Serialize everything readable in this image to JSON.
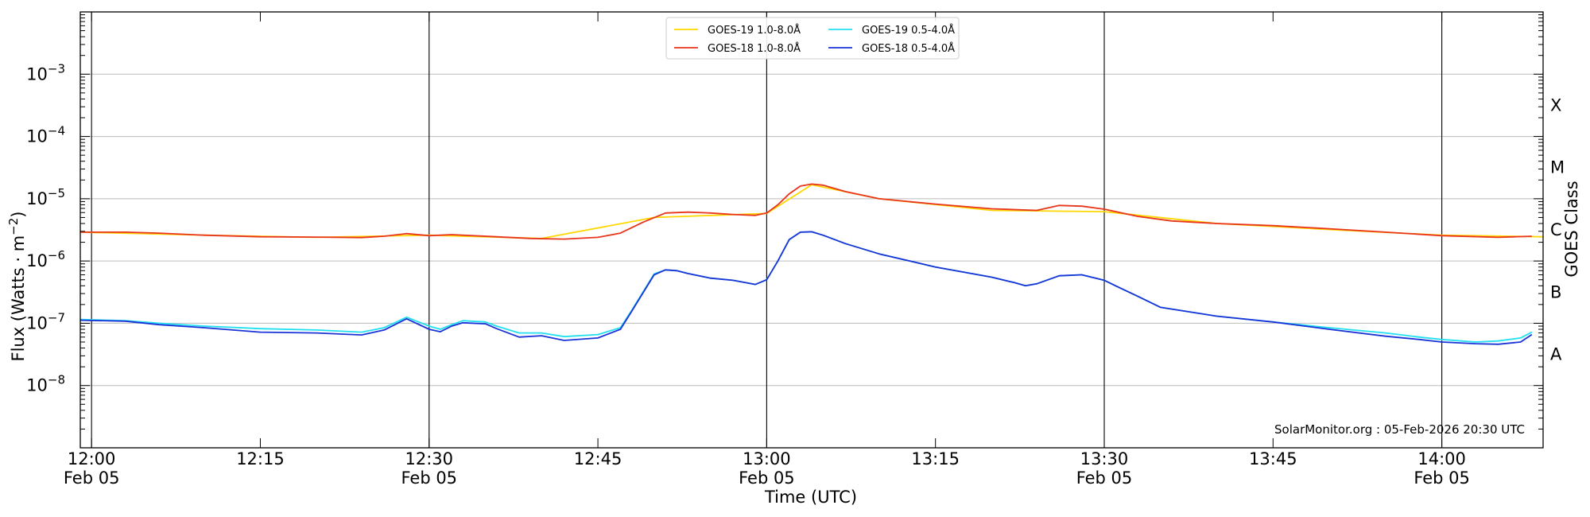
{
  "chart_data": {
    "type": "line",
    "title": "",
    "xlabel": "Time (UTC)",
    "ylabel": "Flux (Watts · m⁻²)",
    "right_label": "GOES Class",
    "credit": "SolarMonitor.org : 05-Feb-2026 20:30 UTC",
    "y_scale": "log",
    "ylim": [
      1e-09,
      0.01
    ],
    "xlim_minutes": [
      -1,
      129
    ],
    "grid": "horizontal at decades",
    "legend_position": "top-center",
    "y_ticks": [
      {
        "value": 1e-08,
        "base": "10",
        "exp": "−8"
      },
      {
        "value": 1e-07,
        "base": "10",
        "exp": "−7"
      },
      {
        "value": 1e-06,
        "base": "10",
        "exp": "−6"
      },
      {
        "value": 1e-05,
        "base": "10",
        "exp": "−5"
      },
      {
        "value": 0.0001,
        "base": "10",
        "exp": "−4"
      },
      {
        "value": 0.001,
        "base": "10",
        "exp": "−3"
      }
    ],
    "x_ticks": [
      {
        "minute": 0,
        "label": "12:00",
        "date": "Feb 05"
      },
      {
        "minute": 15,
        "label": "12:15",
        "date": ""
      },
      {
        "minute": 30,
        "label": "12:30",
        "date": "Feb 05"
      },
      {
        "minute": 45,
        "label": "12:45",
        "date": ""
      },
      {
        "minute": 60,
        "label": "13:00",
        "date": "Feb 05"
      },
      {
        "minute": 75,
        "label": "13:15",
        "date": ""
      },
      {
        "minute": 90,
        "label": "13:30",
        "date": "Feb 05"
      },
      {
        "minute": 105,
        "label": "13:45",
        "date": ""
      },
      {
        "minute": 120,
        "label": "14:00",
        "date": "Feb 05"
      }
    ],
    "vlines_minutes": [
      0,
      30,
      60,
      90,
      120
    ],
    "goes_classes": [
      {
        "label": "A",
        "value": 3.16e-08
      },
      {
        "label": "B",
        "value": 3.16e-07
      },
      {
        "label": "C",
        "value": 3.16e-06
      },
      {
        "label": "M",
        "value": 3.16e-05
      },
      {
        "label": "X",
        "value": 0.000316
      }
    ],
    "series": [
      {
        "name": "GOES-19 1.0-8.0Å",
        "color": "#ffd700",
        "x": [
          -1,
          10,
          20,
          30,
          40,
          50,
          60,
          64,
          70,
          80,
          90,
          100,
          110,
          120,
          130
        ],
        "y": [
          2.9e-06,
          2.6e-06,
          2.4e-06,
          2.6e-06,
          2.3e-06,
          5e-06,
          5.8e-06,
          1.68e-05,
          1e-05,
          6.5e-06,
          6.2e-06,
          4e-06,
          3.2e-06,
          2.6e-06,
          2.45e-06
        ]
      },
      {
        "name": "GOES-18 1.0-8.0Å",
        "color": "#e8351c",
        "x": [
          -1,
          3,
          6,
          10,
          15,
          20,
          24,
          26,
          28,
          30,
          32,
          36,
          39,
          42,
          45,
          47,
          49,
          51,
          53,
          55,
          57,
          59,
          60,
          61,
          62,
          63,
          64,
          65,
          67,
          70,
          75,
          80,
          84,
          86,
          88,
          90,
          93,
          96,
          100,
          105,
          110,
          115,
          120,
          125,
          128
        ],
        "y": [
          2.9e-06,
          2.9e-06,
          2.8e-06,
          2.6e-06,
          2.45e-06,
          2.42e-06,
          2.38e-06,
          2.5e-06,
          2.75e-06,
          2.55e-06,
          2.65e-06,
          2.45e-06,
          2.3e-06,
          2.25e-06,
          2.4e-06,
          2.8e-06,
          4.2e-06,
          5.9e-06,
          6.1e-06,
          5.9e-06,
          5.6e-06,
          5.4e-06,
          5.9e-06,
          8e-06,
          1.2e-05,
          1.6e-05,
          1.72e-05,
          1.65e-05,
          1.3e-05,
          1e-05,
          8.2e-06,
          6.9e-06,
          6.5e-06,
          7.8e-06,
          7.6e-06,
          6.8e-06,
          5.2e-06,
          4.4e-06,
          4e-06,
          3.7e-06,
          3.3e-06,
          2.9e-06,
          2.55e-06,
          2.4e-06,
          2.5e-06
        ]
      },
      {
        "name": "GOES-19 0.5-4.0Å",
        "color": "#22e0f0",
        "x": [
          -1,
          3,
          6,
          10,
          15,
          20,
          24,
          26,
          28,
          30,
          31,
          32,
          33,
          35,
          36,
          38,
          40,
          42,
          45,
          47,
          48,
          50,
          51,
          52,
          53,
          55,
          57,
          59,
          60,
          61,
          62,
          63,
          64,
          65,
          67,
          70,
          75,
          80,
          82,
          83,
          84,
          86,
          88,
          90,
          91,
          93,
          95,
          100,
          105,
          110,
          115,
          118,
          120,
          123,
          125,
          127,
          128
        ],
        "y": [
          1.15e-07,
          1.1e-07,
          1e-07,
          9e-08,
          8.2e-08,
          7.8e-08,
          7.2e-08,
          8.5e-08,
          1.25e-07,
          9e-08,
          8e-08,
          9.5e-08,
          1.1e-07,
          1.05e-07,
          9e-08,
          7e-08,
          7e-08,
          6.1e-08,
          6.6e-08,
          8.5e-08,
          1.6e-07,
          6.2e-07,
          7.2e-07,
          7e-07,
          6.3e-07,
          5.3e-07,
          4.9e-07,
          4.2e-07,
          5e-07,
          1e-06,
          2.2e-06,
          2.9e-06,
          2.95e-06,
          2.6e-06,
          1.9e-06,
          1.3e-06,
          8e-07,
          5.5e-07,
          4.5e-07,
          4e-07,
          4.3e-07,
          5.8e-07,
          6e-07,
          4.9e-07,
          4e-07,
          2.7e-07,
          1.8e-07,
          1.3e-07,
          1.05e-07,
          8.5e-08,
          7e-08,
          6e-08,
          5.5e-08,
          5e-08,
          5.2e-08,
          5.8e-08,
          7.2e-08
        ]
      },
      {
        "name": "GOES-18 0.5-4.0Å",
        "color": "#1b33d6",
        "x": [
          -1,
          3,
          6,
          10,
          15,
          20,
          24,
          26,
          28,
          30,
          31,
          32,
          33,
          35,
          36,
          38,
          40,
          42,
          45,
          47,
          48,
          50,
          51,
          52,
          53,
          55,
          57,
          59,
          60,
          61,
          62,
          63,
          64,
          65,
          67,
          70,
          75,
          80,
          82,
          83,
          84,
          86,
          88,
          90,
          91,
          93,
          95,
          100,
          105,
          110,
          115,
          118,
          120,
          123,
          125,
          127,
          128
        ],
        "y": [
          1.12e-07,
          1.08e-07,
          9.5e-08,
          8.5e-08,
          7.2e-08,
          7e-08,
          6.5e-08,
          7.8e-08,
          1.18e-07,
          8e-08,
          7.3e-08,
          9e-08,
          1.02e-07,
          9.8e-08,
          8.2e-08,
          6e-08,
          6.3e-08,
          5.3e-08,
          5.8e-08,
          8e-08,
          1.55e-07,
          6e-07,
          7.2e-07,
          7e-07,
          6.3e-07,
          5.3e-07,
          4.9e-07,
          4.2e-07,
          5e-07,
          1e-06,
          2.2e-06,
          2.9e-06,
          2.95e-06,
          2.6e-06,
          1.9e-06,
          1.3e-06,
          8e-07,
          5.5e-07,
          4.5e-07,
          4e-07,
          4.3e-07,
          5.8e-07,
          6e-07,
          4.9e-07,
          4e-07,
          2.7e-07,
          1.8e-07,
          1.3e-07,
          1.05e-07,
          8e-08,
          6.2e-08,
          5.5e-08,
          5e-08,
          4.7e-08,
          4.6e-08,
          5e-08,
          6.6e-08
        ]
      }
    ]
  }
}
